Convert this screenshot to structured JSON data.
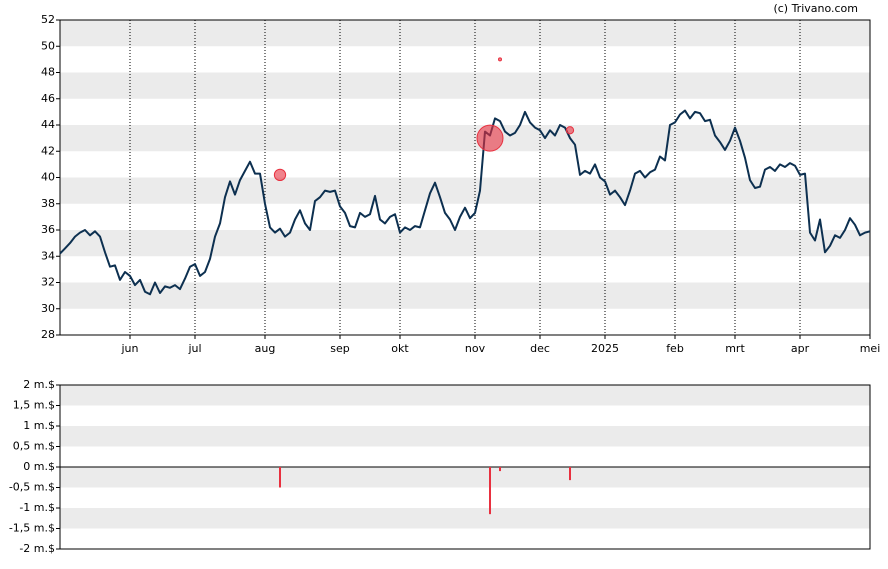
{
  "chart_data": [
    {
      "type": "line",
      "annotation": "(c) Trivano.com",
      "color": "#0d3050",
      "grid": true,
      "ylim": [
        28,
        52
      ],
      "yticks": [
        28,
        30,
        32,
        34,
        36,
        38,
        40,
        42,
        44,
        46,
        48,
        50,
        52
      ],
      "categories": [
        null,
        null,
        null,
        null,
        null,
        null,
        null,
        null,
        null,
        null,
        null,
        null,
        null,
        null,
        "jun",
        null,
        null,
        null,
        null,
        null,
        null,
        null,
        null,
        null,
        null,
        null,
        null,
        "jul",
        null,
        null,
        null,
        null,
        null,
        null,
        null,
        null,
        null,
        null,
        null,
        null,
        null,
        "aug",
        null,
        null,
        null,
        null,
        null,
        null,
        null,
        null,
        null,
        null,
        null,
        null,
        null,
        null,
        "sep",
        null,
        null,
        null,
        null,
        null,
        null,
        null,
        null,
        null,
        null,
        null,
        "okt",
        null,
        null,
        null,
        null,
        null,
        null,
        null,
        null,
        null,
        null,
        null,
        null,
        null,
        null,
        "nov",
        null,
        null,
        null,
        null,
        null,
        null,
        null,
        null,
        null,
        null,
        null,
        null,
        "dec",
        null,
        null,
        null,
        null,
        null,
        null,
        null,
        null,
        null,
        null,
        null,
        null,
        "2025",
        null,
        null,
        null,
        null,
        null,
        null,
        null,
        null,
        null,
        null,
        null,
        null,
        null,
        "feb",
        null,
        null,
        null,
        null,
        null,
        null,
        null,
        null,
        null,
        null,
        null,
        "mrt",
        null,
        null,
        null,
        null,
        null,
        null,
        null,
        null,
        null,
        null,
        null,
        null,
        "apr",
        null,
        null,
        null,
        null,
        null,
        null,
        null,
        null,
        null,
        null,
        null,
        null,
        null,
        "mei"
      ],
      "values": [
        34.2,
        34.6,
        35,
        35.5,
        35.8,
        36,
        35.6,
        35.9,
        35.5,
        34.3,
        33.2,
        33.3,
        32.2,
        32.8,
        32.5,
        31.8,
        32.2,
        31.3,
        31.1,
        32,
        31.2,
        31.7,
        31.6,
        31.8,
        31.5,
        32.3,
        33.2,
        33.4,
        32.5,
        32.8,
        33.8,
        35.5,
        36.5,
        38.5,
        39.7,
        38.7,
        39.8,
        40.5,
        41.2,
        40.3,
        40.3,
        38,
        36.2,
        35.8,
        36.1,
        35.5,
        35.8,
        36.8,
        37.5,
        36.5,
        36,
        38.2,
        38.5,
        39,
        38.9,
        39,
        37.8,
        37.3,
        36.3,
        36.2,
        37.3,
        37,
        37.2,
        38.6,
        36.8,
        36.5,
        37,
        37.2,
        35.8,
        36.2,
        36,
        36.3,
        36.2,
        37.5,
        38.8,
        39.6,
        38.5,
        37.3,
        36.8,
        36,
        37,
        37.7,
        36.9,
        37.3,
        39,
        43.5,
        43.2,
        44.5,
        44.3,
        43.5,
        43.2,
        43.4,
        44,
        45,
        44.2,
        43.8,
        43.6,
        43,
        43.6,
        43.2,
        44,
        43.8,
        43,
        42.5,
        40.2,
        40.5,
        40.3,
        41,
        40,
        39.7,
        38.7,
        39,
        38.5,
        37.9,
        39,
        40.3,
        40.5,
        40,
        40.4,
        40.6,
        41.6,
        41.3,
        44,
        44.2,
        44.8,
        45.1,
        44.5,
        45,
        44.9,
        44.3,
        44.4,
        43.2,
        42.7,
        42.1,
        42.8,
        43.8,
        42.8,
        41.5,
        39.8,
        39.2,
        39.3,
        40.6,
        40.8,
        40.5,
        41,
        40.8,
        41.1,
        40.9,
        40.2,
        40.3,
        35.8,
        35.2,
        36.8,
        34.3,
        34.8,
        35.6,
        35.4,
        36,
        36.9,
        36.4,
        35.6,
        35.8,
        35.9
      ],
      "bubbles": {
        "color": "#e8303f",
        "values": [
          40.2,
          43,
          49,
          43.6
        ]
      }
    },
    {
      "type": "bar",
      "color": "#e8303f",
      "grid": true,
      "xlim": [
        0,
        162
      ],
      "x": [
        44,
        86,
        88,
        102
      ],
      "values": [
        -0.5,
        -1.15,
        -0.1,
        -0.32
      ],
      "ylim": [
        -2,
        2
      ],
      "yticks": [
        {
          "value": -2,
          "label": "-2 m.$"
        },
        {
          "value": -1.5,
          "label": "-1,5 m.$"
        },
        {
          "value": -1,
          "label": "-1 m.$"
        },
        {
          "value": -0.5,
          "label": "-0,5 m.$"
        },
        {
          "value": 0,
          "label": "0 m.$"
        },
        {
          "value": 0.5,
          "label": "0,5 m.$"
        },
        {
          "value": 1,
          "label": "1 m.$"
        },
        {
          "value": 1.5,
          "label": "1,5 m.$"
        },
        {
          "value": 2,
          "label": "2 m.$"
        }
      ]
    }
  ]
}
